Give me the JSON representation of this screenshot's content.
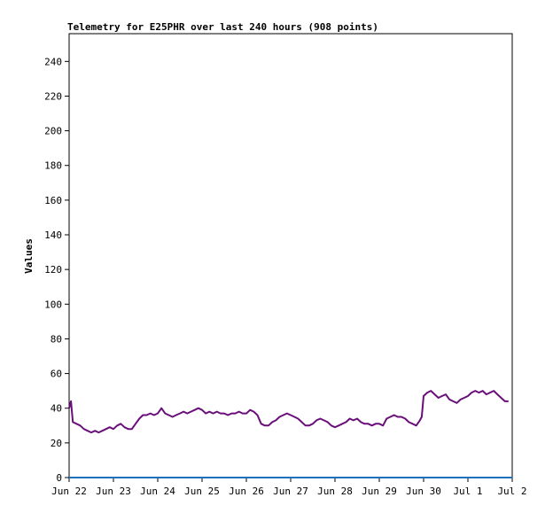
{
  "chart_data": {
    "type": "line",
    "title": "Telemetry for E25PHR over last 240 hours (908 points)",
    "xlabel": "",
    "ylabel": "Values",
    "ylim": [
      0,
      256
    ],
    "xlim": [
      0,
      240
    ],
    "yticks": [
      0,
      20,
      40,
      60,
      80,
      100,
      120,
      140,
      160,
      180,
      200,
      220,
      240
    ],
    "xticks": [
      {
        "label": "Jun 22",
        "hour": 0
      },
      {
        "label": "Jun 23",
        "hour": 24
      },
      {
        "label": "Jun 24",
        "hour": 48
      },
      {
        "label": "Jun 25",
        "hour": 72
      },
      {
        "label": "Jun 26",
        "hour": 96
      },
      {
        "label": "Jun 27",
        "hour": 120
      },
      {
        "label": "Jun 28",
        "hour": 144
      },
      {
        "label": "Jun 29",
        "hour": 168
      },
      {
        "label": "Jun 30",
        "hour": 192
      },
      {
        "label": "Jul 1",
        "hour": 216
      },
      {
        "label": "Jul 2",
        "hour": 240
      }
    ],
    "grid": false,
    "legend": "none",
    "series": [
      {
        "color": "#6a0f7a",
        "x": [
          0,
          1,
          2,
          4,
          6,
          8,
          10,
          12,
          14,
          16,
          18,
          20,
          22,
          24,
          26,
          28,
          30,
          32,
          34,
          36,
          38,
          40,
          42,
          44,
          46,
          48,
          50,
          52,
          54,
          56,
          58,
          60,
          62,
          64,
          66,
          68,
          70,
          72,
          74,
          76,
          78,
          80,
          82,
          84,
          86,
          88,
          90,
          92,
          94,
          96,
          98,
          100,
          102,
          104,
          106,
          108,
          110,
          112,
          114,
          116,
          118,
          120,
          122,
          124,
          126,
          128,
          130,
          132,
          134,
          136,
          138,
          140,
          142,
          144,
          146,
          148,
          150,
          152,
          154,
          156,
          158,
          160,
          162,
          164,
          166,
          168,
          170,
          172,
          174,
          176,
          178,
          180,
          182,
          184,
          186,
          188,
          190,
          191,
          192,
          194,
          196,
          198,
          200,
          202,
          204,
          206,
          208,
          210,
          212,
          214,
          216,
          218,
          220,
          222,
          224,
          226,
          228,
          230,
          232,
          234,
          236,
          238
        ],
        "y": [
          40,
          44,
          32,
          31,
          30,
          28,
          27,
          26,
          27,
          26,
          27,
          28,
          29,
          28,
          30,
          31,
          29,
          28,
          28,
          31,
          34,
          36,
          36,
          37,
          36,
          37,
          40,
          37,
          36,
          35,
          36,
          37,
          38,
          37,
          38,
          39,
          40,
          39,
          37,
          38,
          37,
          38,
          37,
          37,
          36,
          37,
          37,
          38,
          37,
          37,
          39,
          38,
          36,
          31,
          30,
          30,
          32,
          33,
          35,
          36,
          37,
          36,
          35,
          34,
          32,
          30,
          30,
          31,
          33,
          34,
          33,
          32,
          30,
          29,
          30,
          31,
          32,
          34,
          33,
          34,
          32,
          31,
          31,
          30,
          31,
          31,
          30,
          34,
          35,
          36,
          35,
          35,
          34,
          32,
          31,
          30,
          33,
          35,
          47,
          49,
          50,
          48,
          46,
          47,
          48,
          45,
          44,
          43,
          45,
          46,
          47,
          49,
          50,
          49,
          50,
          48,
          49,
          50,
          48,
          46,
          44,
          44
        ]
      },
      {
        "color": "#1f6fbf",
        "x": [
          0,
          240
        ],
        "y": [
          0,
          0
        ]
      }
    ]
  }
}
